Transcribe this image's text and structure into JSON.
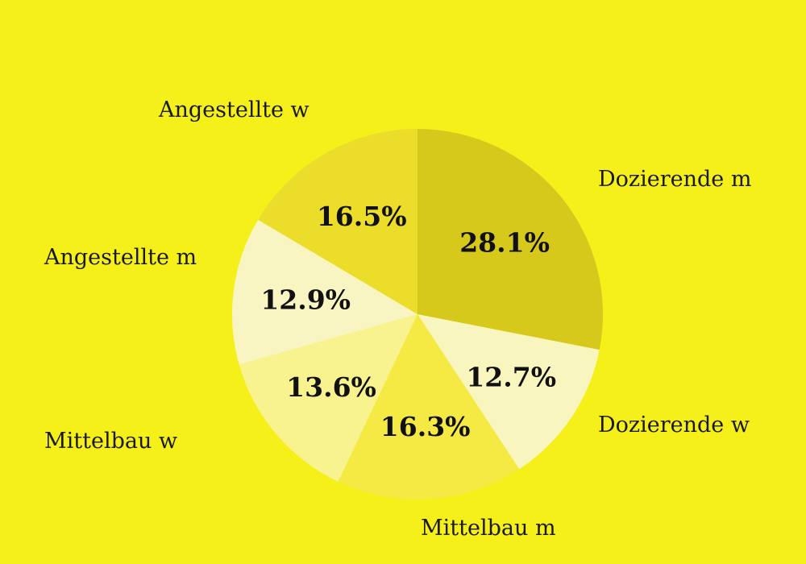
{
  "chart_data": {
    "type": "pie",
    "title": "",
    "slices": [
      {
        "label": "Dozierende m",
        "value": 28.1,
        "display": "28.1%",
        "color": "#d7c81c"
      },
      {
        "label": "Dozierende w",
        "value": 12.7,
        "display": "12.7%",
        "color": "#f8f5bf"
      },
      {
        "label": "Mittelbau m",
        "value": 16.3,
        "display": "16.3%",
        "color": "#f5ea44"
      },
      {
        "label": "Mittelbau w",
        "value": 13.6,
        "display": "13.6%",
        "color": "#f8f28f"
      },
      {
        "label": "Angestellte m",
        "value": 12.9,
        "display": "12.9%",
        "color": "#f8f5c2"
      },
      {
        "label": "Angestellte w",
        "value": 16.5,
        "display": "16.5%",
        "color": "#ebdd2a"
      }
    ],
    "background_color": "#f5f01a",
    "legend": "none",
    "start_angle": "12 o'clock",
    "direction": "clockwise"
  }
}
